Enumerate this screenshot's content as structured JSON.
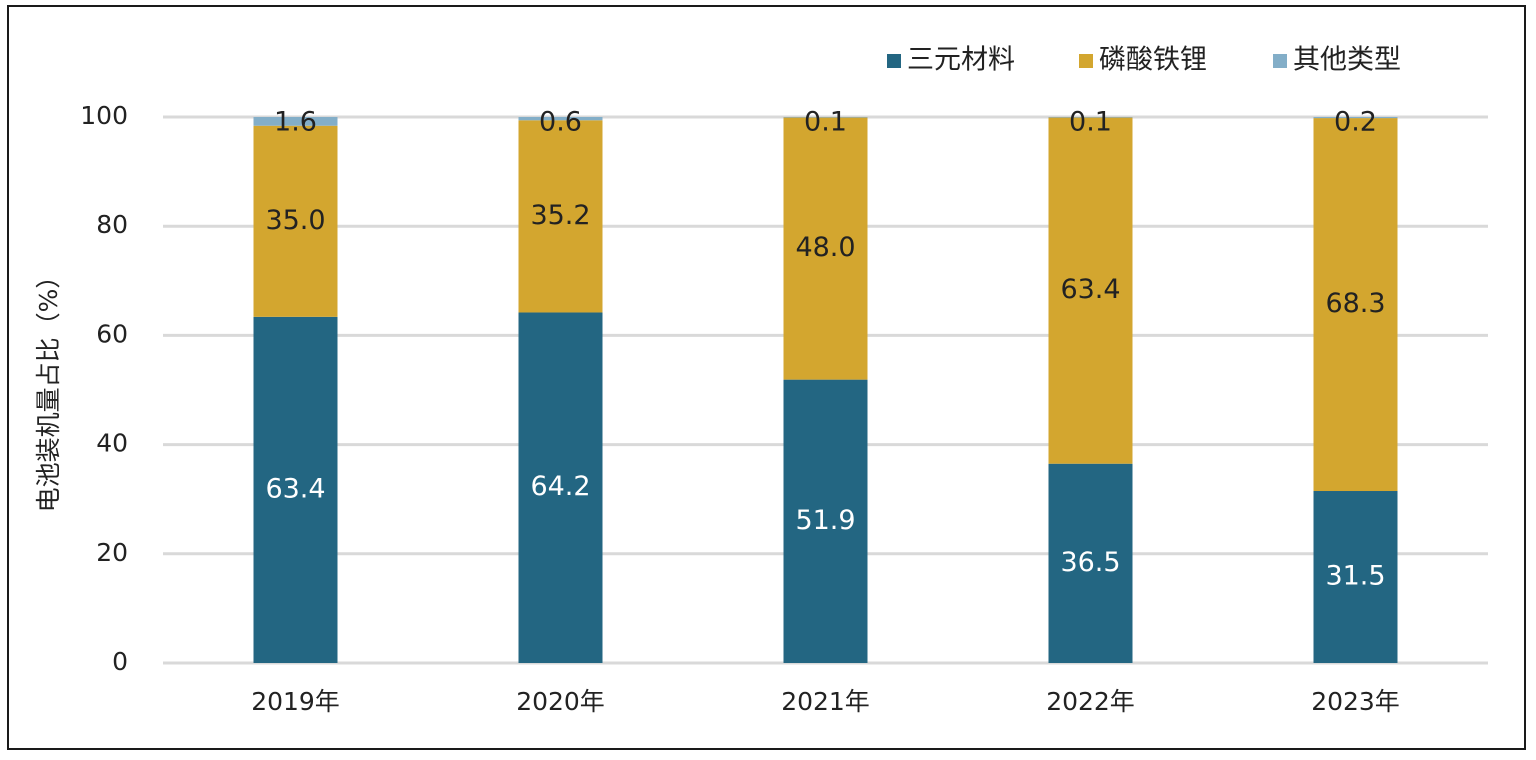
{
  "chart_data": {
    "type": "bar",
    "stacked": true,
    "categories": [
      "2019年",
      "2020年",
      "2021年",
      "2022年",
      "2023年"
    ],
    "series": [
      {
        "name": "三元材料",
        "color": "#236682",
        "label_color": "#ffffff",
        "values": [
          63.4,
          64.2,
          51.9,
          36.5,
          31.5
        ]
      },
      {
        "name": "磷酸铁锂",
        "color": "#d3a62f",
        "label_color": "#222222",
        "values": [
          35.0,
          35.2,
          48.0,
          63.4,
          68.3
        ]
      },
      {
        "name": "其他类型",
        "color": "#83aec8",
        "label_color": "#222222",
        "values": [
          1.6,
          0.6,
          0.1,
          0.1,
          0.2
        ]
      }
    ],
    "ylabel": "电池装机量占比（%）",
    "ylim": [
      0,
      100
    ],
    "yticks": [
      0,
      20,
      40,
      60,
      80,
      100
    ],
    "grid": true,
    "legend_position": "top-right"
  }
}
